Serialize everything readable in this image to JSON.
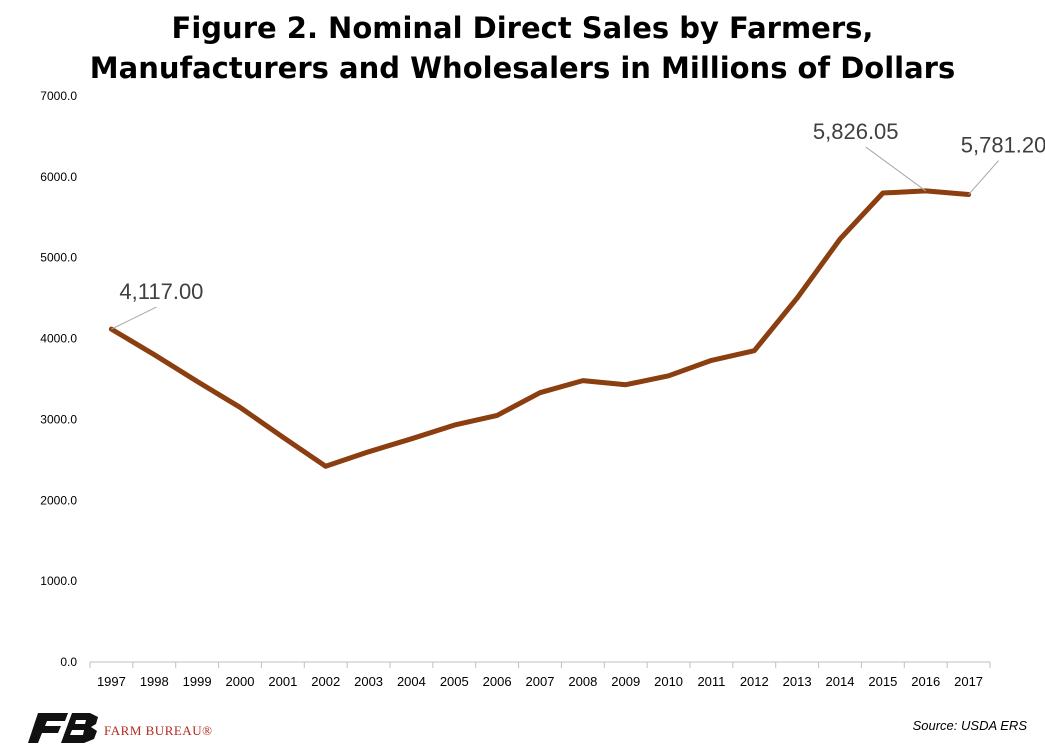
{
  "title_line1": "Figure 2. Nominal Direct Sales by Farmers,",
  "title_line2": "Manufacturers and Wholesalers in Millions of Dollars",
  "source": "Source: USDA ERS",
  "logo_text": "FARM BUREAU®",
  "colors": {
    "line": "#8B3E0F",
    "axis": "#bfbfbf",
    "callout": "#a6a6a6",
    "label": "#404040",
    "brand": "#b22a1f"
  },
  "chart_data": {
    "type": "line",
    "title": "Figure 2. Nominal Direct Sales by Farmers, Manufacturers and Wholesalers in Millions of Dollars",
    "xlabel": "",
    "ylabel": "",
    "categories": [
      "1997",
      "1998",
      "1999",
      "2000",
      "2001",
      "2002",
      "2003",
      "2004",
      "2005",
      "2006",
      "2007",
      "2008",
      "2009",
      "2010",
      "2011",
      "2012",
      "2013",
      "2014",
      "2015",
      "2016",
      "2017"
    ],
    "series": [
      {
        "values": [
          4117.0,
          3800,
          3470,
          3150,
          2780,
          2420,
          2600,
          2760,
          2930,
          3050,
          3330,
          3480,
          3430,
          3540,
          3730,
          3850,
          4500,
          5230,
          5800,
          5826.05,
          5781.2
        ]
      }
    ],
    "ylim": [
      0,
      7000
    ],
    "yticks": [
      "0.0",
      "1000.0",
      "2000.0",
      "3000.0",
      "4000.0",
      "5000.0",
      "6000.0",
      "7000.0"
    ],
    "grid": false,
    "data_labels": [
      {
        "index": 0,
        "text": "4,117.00"
      },
      {
        "index": 19,
        "text": "5,826.05"
      },
      {
        "index": 20,
        "text": "5,781.20"
      }
    ]
  }
}
